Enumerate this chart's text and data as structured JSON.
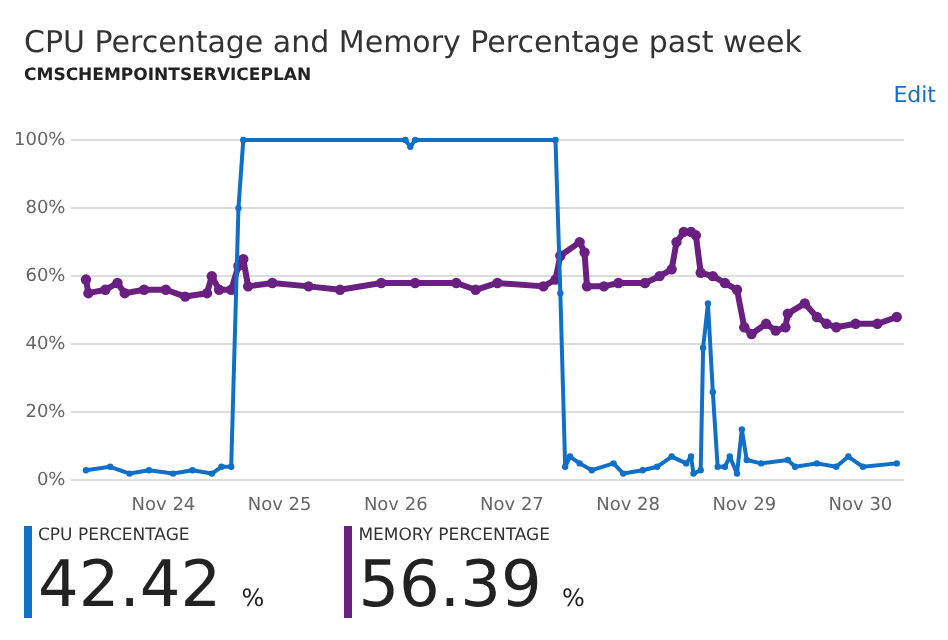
{
  "chart_data": {
    "type": "line",
    "title": "CPU Percentage and Memory Percentage past week",
    "subtitle": "CMSCHEMPOINTSERVICEPLAN",
    "annotations": [
      "Edit",
      "42.42 %",
      "56.39 %"
    ],
    "xlim": [
      "--11-23T05:00",
      "--11-30T09:00"
    ],
    "xticks": [
      {
        "value": "--11-24",
        "label": "Nov 24"
      },
      {
        "value": "--11-25",
        "label": "Nov 25"
      },
      {
        "value": "--11-26",
        "label": "Nov 26"
      },
      {
        "value": "--11-27",
        "label": "Nov 27"
      },
      {
        "value": "--11-28",
        "label": "Nov 28"
      },
      {
        "value": "--11-29",
        "label": "Nov 29"
      },
      {
        "value": "--11-30",
        "label": "Nov 30"
      }
    ],
    "ylim": [
      0,
      100
    ],
    "yticks": [
      {
        "value": 0,
        "label": "0%"
      },
      {
        "value": 20,
        "label": "20%"
      },
      {
        "value": 40,
        "label": "40%"
      },
      {
        "value": 60,
        "label": "60%"
      },
      {
        "value": 80,
        "label": "80%"
      },
      {
        "value": 100,
        "label": "100%"
      }
    ],
    "grid": "y",
    "legend": "bottom",
    "marker": "circle",
    "line_style": "solid",
    "series": [
      {
        "name": "CPU PERCENTAGE",
        "color": "#1070c8",
        "x": [
          "--11-23T08:00",
          "--11-23T13:00",
          "--11-23T17:00",
          "--11-23T21:00",
          "--11-24T02:00",
          "--11-24T06:00",
          "--11-24T10:00",
          "--11-24T12:00",
          "--11-24T14:00",
          "--11-24T15:30",
          "--11-24T16:30",
          "--11-26T02:00",
          "--11-26T03:00",
          "--11-26T04:00",
          "--11-27T09:00",
          "--11-27T10:00",
          "--11-27T11:00",
          "--11-27T12:00",
          "--11-27T14:00",
          "--11-27T16:30",
          "--11-27T21:00",
          "--11-27T23:00",
          "--11-28T03:00",
          "--11-28T06:00",
          "--11-28T09:00",
          "--11-28T12:00",
          "--11-28T13:00",
          "--11-28T13:30",
          "--11-28T15:00",
          "--11-28T15:30",
          "--11-28T16:30",
          "--11-28T17:30",
          "--11-28T18:30",
          "--11-28T20:00",
          "--11-28T21:00",
          "--11-28T22:30",
          "--11-28T23:30",
          "--11-29T00:30",
          "--11-29T03:30",
          "--11-29T09:00",
          "--11-29T10:30",
          "--11-29T15:00",
          "--11-29T19:00",
          "--11-29T21:30",
          "--11-30T00:30",
          "--11-30T07:30"
        ],
        "values": [
          3,
          4,
          2,
          3,
          2,
          3,
          2,
          4,
          4,
          80,
          100,
          100,
          98,
          100,
          100,
          55,
          4,
          7,
          5,
          3,
          5,
          2,
          3,
          4,
          7,
          5,
          7,
          2,
          3,
          39,
          52,
          26,
          4,
          4,
          7,
          2,
          15,
          6,
          5,
          6,
          4,
          5,
          4,
          7,
          4,
          5
        ]
      },
      {
        "name": "MEMORY PERCENTAGE",
        "color": "#6a2080",
        "x": [
          "--11-23T08:00",
          "--11-23T08:30",
          "--11-23T12:00",
          "--11-23T14:30",
          "--11-23T16:00",
          "--11-23T20:00",
          "--11-24T00:30",
          "--11-24T04:30",
          "--11-24T09:00",
          "--11-24T10:00",
          "--11-24T11:30",
          "--11-24T14:00",
          "--11-24T15:30",
          "--11-24T16:30",
          "--11-24T17:30",
          "--11-24T22:30",
          "--11-25T06:00",
          "--11-25T12:30",
          "--11-25T21:00",
          "--11-26T04:00",
          "--11-26T12:30",
          "--11-26T16:30",
          "--11-26T21:00",
          "--11-27T06:30",
          "--11-27T09:00",
          "--11-27T10:00",
          "--11-27T14:00",
          "--11-27T15:00",
          "--11-27T15:30",
          "--11-27T19:00",
          "--11-27T22:00",
          "--11-28T03:30",
          "--11-28T06:30",
          "--11-28T09:00",
          "--11-28T10:00",
          "--11-28T11:30",
          "--11-28T13:00",
          "--11-28T14:00",
          "--11-28T15:00",
          "--11-28T17:30",
          "--11-28T20:00",
          "--11-28T22:30",
          "--11-29T00:00",
          "--11-29T01:30",
          "--11-29T04:30",
          "--11-29T06:30",
          "--11-29T08:30",
          "--11-29T09:00",
          "--11-29T12:30",
          "--11-29T15:00",
          "--11-29T17:00",
          "--11-29T19:00",
          "--11-29T23:00",
          "--11-30T03:30",
          "--11-30T07:30"
        ],
        "values": [
          59,
          55,
          56,
          58,
          55,
          56,
          56,
          54,
          55,
          60,
          56,
          56,
          63,
          65,
          57,
          58,
          57,
          56,
          58,
          58,
          58,
          56,
          58,
          57,
          59,
          66,
          70,
          67,
          57,
          57,
          58,
          58,
          60,
          62,
          70,
          73,
          73,
          72,
          61,
          60,
          58,
          56,
          45,
          43,
          46,
          44,
          45,
          49,
          52,
          48,
          46,
          45,
          46,
          46,
          48
        ]
      }
    ]
  }
}
